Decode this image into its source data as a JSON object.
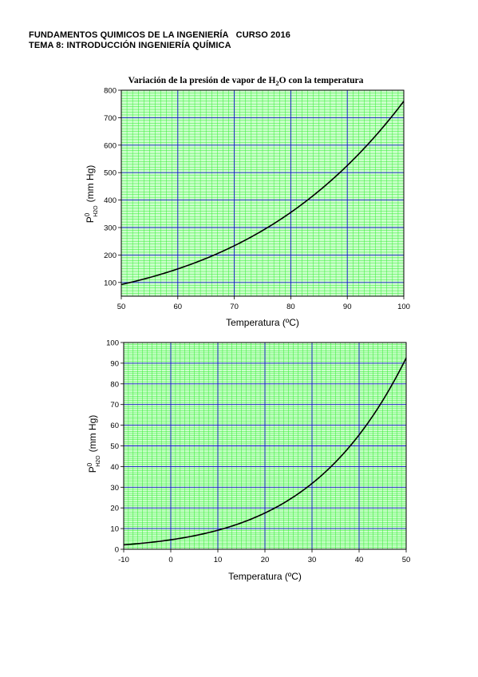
{
  "header": {
    "line1": "FUNDAMENTOS QUIMICOS DE LA INGENIERÍA   CURSO 2016",
    "line2": "TEMA 8: INTRODUCCIÓN INGENIERÍA QUÍMICA"
  },
  "colors": {
    "plot_background": "#ccffcc",
    "minor_grid": "#33ee33",
    "major_grid": "#1111cc",
    "curve": "#000000"
  },
  "chart_data": [
    {
      "type": "line",
      "title": "Variación de la presión de vapor de H₂O con la temperatura",
      "title_main": "Variación de la presión de vapor de H",
      "title_sub": "2",
      "title_end": "O con la temperatura",
      "xlabel": "Temperatura (ºC)",
      "ylabel_main": "P",
      "ylabel_sup": "0",
      "ylabel_sub": "H2O",
      "ylabel_unit": "(mm Hg)",
      "xlim": [
        50,
        100
      ],
      "ylim": [
        50,
        800
      ],
      "xticks": [
        50,
        60,
        70,
        80,
        90,
        100
      ],
      "yticks": [
        100,
        200,
        300,
        400,
        500,
        600,
        700,
        800
      ],
      "grid": true,
      "series": [
        {
          "x": [
            50,
            55,
            60,
            65,
            70,
            75,
            80,
            85,
            90,
            95,
            100
          ],
          "y": [
            92.5,
            118.0,
            149.4,
            187.5,
            233.7,
            289.1,
            355.1,
            433.6,
            525.8,
            633.9,
            760.0
          ]
        }
      ]
    },
    {
      "type": "line",
      "title": "",
      "xlabel": "Temperatura (ºC)",
      "ylabel_main": "P",
      "ylabel_sup": "0",
      "ylabel_sub": "H2O",
      "ylabel_unit": "(mm Hg)",
      "xlim": [
        -10,
        50
      ],
      "ylim": [
        0,
        100
      ],
      "xticks": [
        -10,
        0,
        10,
        20,
        30,
        40,
        50
      ],
      "yticks": [
        0,
        10,
        20,
        30,
        40,
        50,
        60,
        70,
        80,
        90,
        100
      ],
      "grid": true,
      "series": [
        {
          "x": [
            -10,
            -5,
            0,
            5,
            10,
            15,
            20,
            25,
            30,
            35,
            40,
            45,
            50
          ],
          "y": [
            2.15,
            3.16,
            4.58,
            6.54,
            9.21,
            12.79,
            17.54,
            23.76,
            31.82,
            42.18,
            55.32,
            71.88,
            92.51
          ]
        }
      ]
    }
  ]
}
